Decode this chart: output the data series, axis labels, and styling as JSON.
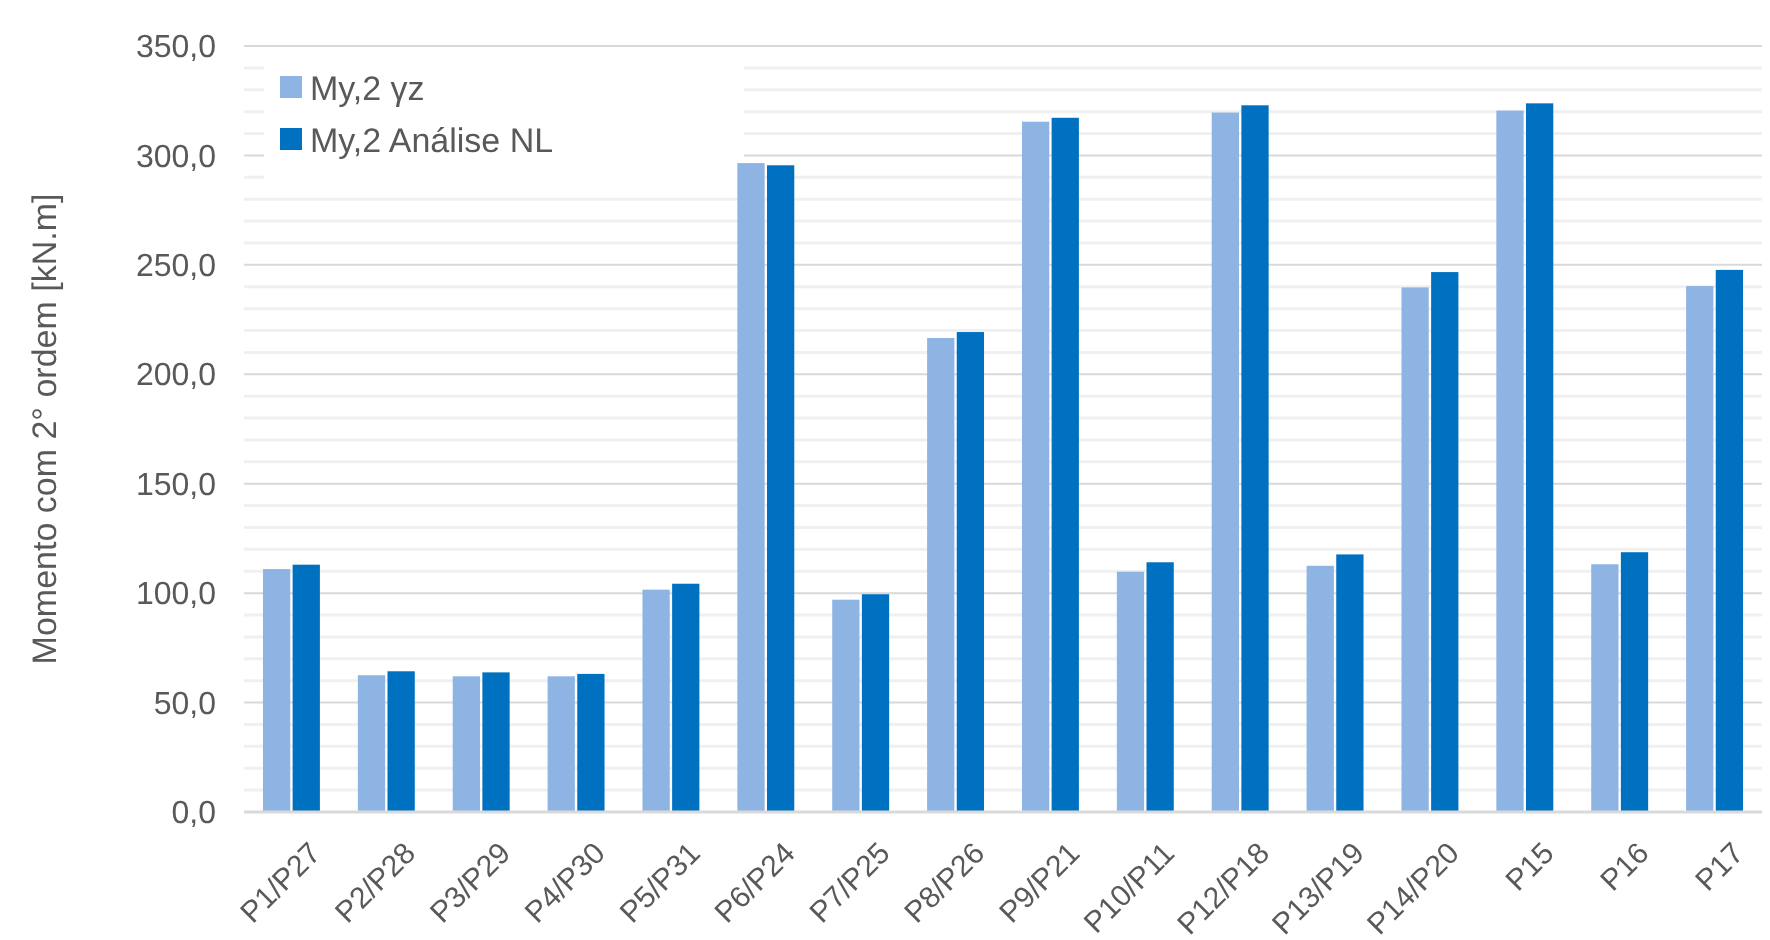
{
  "chart_data": {
    "type": "bar",
    "ylabel": "Momento com 2° ordem [kN.m]",
    "categories": [
      "P1/P27",
      "P2/P28",
      "P3/P29",
      "P4/P30",
      "P5/P31",
      "P6/P24",
      "P7/P25",
      "P8/P26",
      "P9/P21",
      "P10/P11",
      "P12/P18",
      "P13/P19",
      "P14/P20",
      "P15",
      "P16",
      "P17"
    ],
    "series": [
      {
        "name": "My,2 γz",
        "color": "#8eb4e3",
        "values": [
          111,
          62.5,
          62,
          62,
          101.6,
          296.5,
          97,
          216.6,
          315.4,
          109.8,
          319.6,
          112.5,
          239.7,
          320.5,
          113.2,
          240.3
        ]
      },
      {
        "name": "My,2 Análise NL",
        "color": "#0070c0",
        "values": [
          113,
          64.3,
          63.8,
          63.1,
          104.3,
          295.5,
          99.5,
          219.3,
          317.2,
          114.1,
          322.9,
          117.7,
          246.7,
          323.8,
          118.7,
          247.7
        ]
      }
    ],
    "ylim": [
      0,
      350
    ],
    "yticks": [
      {
        "value": 0,
        "label": "0,0"
      },
      {
        "value": 10,
        "label": null
      },
      {
        "value": 20,
        "label": null
      },
      {
        "value": 30,
        "label": null
      },
      {
        "value": 40,
        "label": null
      },
      {
        "value": 50,
        "label": "50,0"
      },
      {
        "value": 60,
        "label": null
      },
      {
        "value": 70,
        "label": null
      },
      {
        "value": 80,
        "label": null
      },
      {
        "value": 90,
        "label": null
      },
      {
        "value": 100,
        "label": "100,0"
      },
      {
        "value": 110,
        "label": null
      },
      {
        "value": 120,
        "label": null
      },
      {
        "value": 130,
        "label": null
      },
      {
        "value": 140,
        "label": null
      },
      {
        "value": 150,
        "label": "150,0"
      },
      {
        "value": 160,
        "label": null
      },
      {
        "value": 170,
        "label": null
      },
      {
        "value": 180,
        "label": null
      },
      {
        "value": 190,
        "label": null
      },
      {
        "value": 200,
        "label": "200,0"
      },
      {
        "value": 210,
        "label": null
      },
      {
        "value": 220,
        "label": null
      },
      {
        "value": 230,
        "label": null
      },
      {
        "value": 240,
        "label": null
      },
      {
        "value": 250,
        "label": "250,0"
      },
      {
        "value": 260,
        "label": null
      },
      {
        "value": 270,
        "label": null
      },
      {
        "value": 280,
        "label": null
      },
      {
        "value": 290,
        "label": null
      },
      {
        "value": 300,
        "label": "300,0"
      },
      {
        "value": 310,
        "label": null
      },
      {
        "value": 320,
        "label": null
      },
      {
        "value": 330,
        "label": null
      },
      {
        "value": 340,
        "label": null
      },
      {
        "value": 350,
        "label": "350,0"
      }
    ],
    "grid": "y",
    "legend": "top left"
  }
}
